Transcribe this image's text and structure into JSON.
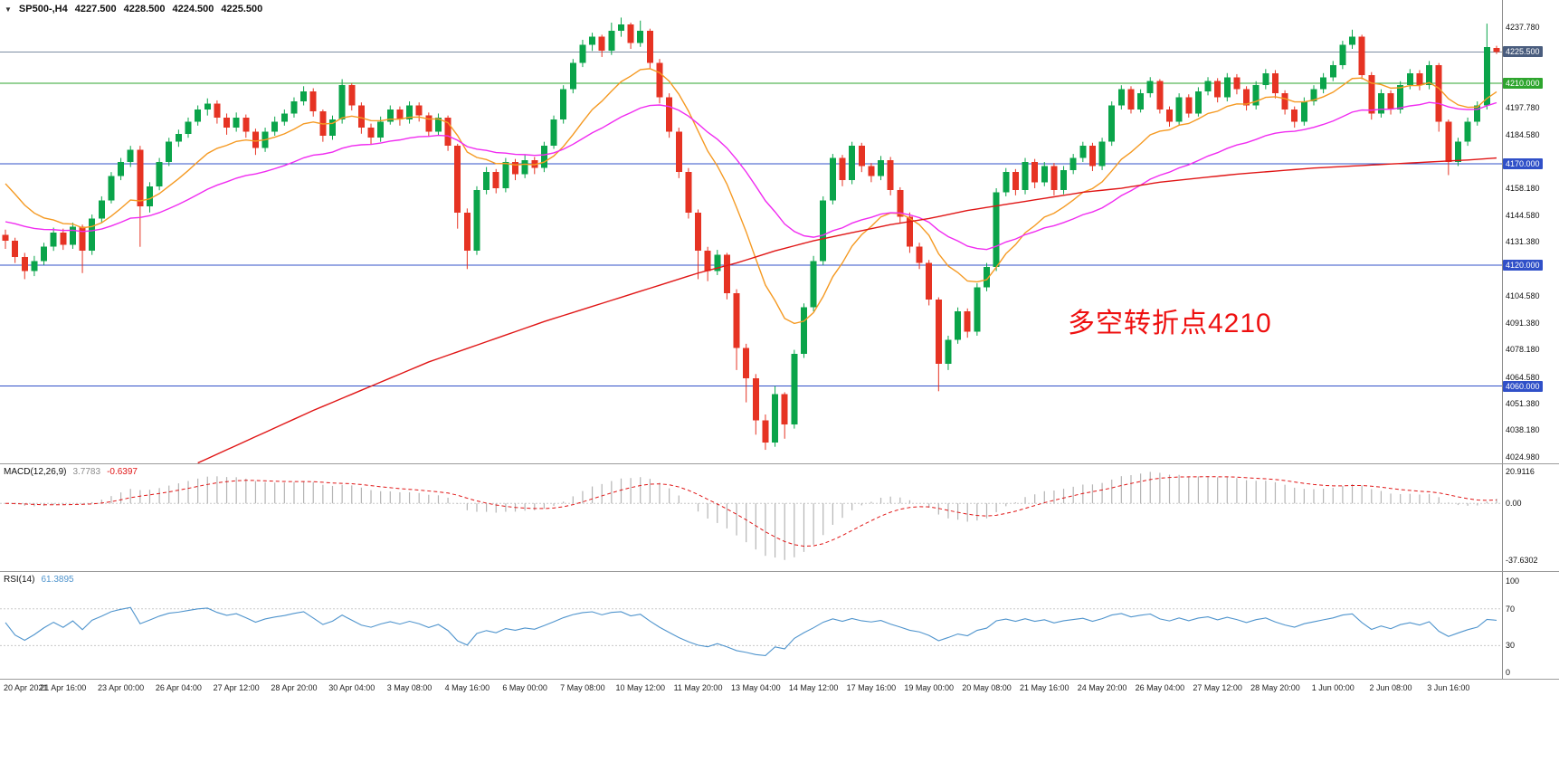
{
  "header": {
    "collapse_icon": "▼",
    "symbol_period": "SP500-,H4",
    "open": "4227.500",
    "high": "4228.500",
    "low": "4224.500",
    "close": "4225.500"
  },
  "annotation": {
    "text": "多空转折点4210",
    "color": "#ee1010"
  },
  "chart_data": {
    "type": "candlestick",
    "title": "SP500- H4",
    "bars": 156,
    "ylim": [
      4021.8,
      4251.2
    ],
    "colors": {
      "up": "#0aa44a",
      "down": "#e63323",
      "background": "#ffffff"
    },
    "x_label_step": 6,
    "x_labels": [
      "20 Apr 2021",
      "21 Apr 16:00",
      "23 Apr 00:00",
      "26 Apr 04:00",
      "27 Apr 12:00",
      "28 Apr 20:00",
      "30 Apr 04:00",
      "3 May 08:00",
      "4 May 16:00",
      "6 May 00:00",
      "7 May 08:00",
      "10 May 12:00",
      "11 May 20:00",
      "13 May 04:00",
      "14 May 12:00",
      "17 May 16:00",
      "19 May 00:00",
      "20 May 08:00",
      "21 May 16:00",
      "24 May 20:00",
      "26 May 04:00",
      "27 May 12:00",
      "28 May 20:00",
      "1 Jun 00:00",
      "2 Jun 08:00",
      "3 Jun 16:00"
    ],
    "price_scale_labels": [
      "4237.780",
      "4197.780",
      "4184.580",
      "4158.180",
      "4144.580",
      "4131.380",
      "4104.580",
      "4091.380",
      "4078.180",
      "4064.580",
      "4051.380",
      "4038.180",
      "4024.980"
    ],
    "hlines": [
      {
        "name": "current-price-line",
        "value": 4225.5,
        "label": "4225.500",
        "line_color": "#7d8fa3",
        "badge_bg": "#4a5d7e"
      },
      {
        "name": "pivot-line-4210",
        "value": 4210.0,
        "label": "4210.000",
        "line_color": "#2ea52e",
        "badge_bg": "#2ea52e"
      },
      {
        "name": "support-line-4170",
        "value": 4170.0,
        "label": "4170.000",
        "line_color": "#3050c8",
        "badge_bg": "#3050c8"
      },
      {
        "name": "support-line-4120",
        "value": 4120.0,
        "label": "4120.000",
        "line_color": "#3050c8",
        "badge_bg": "#3050c8"
      },
      {
        "name": "support-line-4060",
        "value": 4060.0,
        "label": "4060.000",
        "line_color": "#3050c8",
        "badge_bg": "#3050c8"
      }
    ],
    "moving_averages": [
      {
        "name": "ma-fast-orange",
        "type": "ema",
        "period": 13,
        "seed": 4165,
        "color": "#f59a23"
      },
      {
        "name": "ma-medium-magenta",
        "type": "ema",
        "period": 34,
        "seed": 4142,
        "color": "#f02cf0"
      },
      {
        "name": "ma-long-red",
        "type": "points",
        "color": "#e01616",
        "points": [
          [
            20,
            4022
          ],
          [
            26,
            4035
          ],
          [
            32,
            4048
          ],
          [
            38,
            4060
          ],
          [
            44,
            4072
          ],
          [
            50,
            4082
          ],
          [
            56,
            4092
          ],
          [
            60,
            4098
          ],
          [
            64,
            4104
          ],
          [
            68,
            4110
          ],
          [
            72,
            4116
          ],
          [
            76,
            4121
          ],
          [
            80,
            4127
          ],
          [
            84,
            4132
          ],
          [
            88,
            4136
          ],
          [
            92,
            4140
          ],
          [
            96,
            4143
          ],
          [
            100,
            4147
          ],
          [
            104,
            4150
          ],
          [
            108,
            4153
          ],
          [
            112,
            4156
          ],
          [
            116,
            4158
          ],
          [
            120,
            4161
          ],
          [
            124,
            4163
          ],
          [
            128,
            4165
          ],
          [
            132,
            4166.5
          ],
          [
            136,
            4168
          ],
          [
            140,
            4169
          ],
          [
            144,
            4170
          ],
          [
            148,
            4171
          ],
          [
            152,
            4172
          ],
          [
            155,
            4173
          ]
        ]
      }
    ],
    "candles": [
      [
        4135,
        4137.5,
        4128,
        4132
      ],
      [
        4132,
        4133.5,
        4121,
        4124
      ],
      [
        4124,
        4126,
        4113,
        4117
      ],
      [
        4117,
        4124.5,
        4114.5,
        4122
      ],
      [
        4122,
        4131,
        4120,
        4129
      ],
      [
        4129,
        4138.5,
        4127,
        4136
      ],
      [
        4136,
        4138,
        4127.5,
        4130
      ],
      [
        4130,
        4141,
        4128,
        4139
      ],
      [
        4139,
        4140,
        4116,
        4127
      ],
      [
        4127,
        4145,
        4125,
        4143
      ],
      [
        4143,
        4154,
        4141,
        4152
      ],
      [
        4152,
        4166,
        4150.5,
        4164
      ],
      [
        4164,
        4173,
        4162,
        4171
      ],
      [
        4171,
        4179,
        4168.5,
        4177
      ],
      [
        4177,
        4179,
        4129,
        4149
      ],
      [
        4149,
        4161,
        4146,
        4159
      ],
      [
        4159,
        4173,
        4157,
        4171
      ],
      [
        4171,
        4183,
        4169,
        4181
      ],
      [
        4181,
        4187,
        4178.5,
        4185
      ],
      [
        4185,
        4193,
        4183,
        4191
      ],
      [
        4191,
        4199,
        4189,
        4197
      ],
      [
        4197,
        4202.5,
        4194,
        4200
      ],
      [
        4200,
        4201.5,
        4190,
        4193
      ],
      [
        4193,
        4195,
        4184.5,
        4188
      ],
      [
        4188,
        4195.5,
        4186,
        4193
      ],
      [
        4193,
        4194.5,
        4183,
        4186
      ],
      [
        4186,
        4187.5,
        4174.5,
        4178
      ],
      [
        4178,
        4188,
        4176,
        4186
      ],
      [
        4186,
        4193.5,
        4184,
        4191
      ],
      [
        4191,
        4197,
        4189,
        4195
      ],
      [
        4195,
        4203,
        4193,
        4201
      ],
      [
        4201,
        4208.5,
        4199,
        4206
      ],
      [
        4206,
        4207.5,
        4193.5,
        4196
      ],
      [
        4196,
        4197,
        4181,
        4184
      ],
      [
        4184,
        4194,
        4182,
        4192
      ],
      [
        4192,
        4212,
        4190,
        4209
      ],
      [
        4209,
        4210,
        4196.5,
        4199
      ],
      [
        4199,
        4200.5,
        4185,
        4188
      ],
      [
        4188,
        4190,
        4179.5,
        4183
      ],
      [
        4183,
        4193.5,
        4181,
        4191
      ],
      [
        4191,
        4199,
        4189.5,
        4197
      ],
      [
        4197,
        4198.5,
        4189,
        4192
      ],
      [
        4192,
        4201,
        4190,
        4199
      ],
      [
        4199,
        4200.5,
        4191,
        4194
      ],
      [
        4194,
        4195.5,
        4183.5,
        4186
      ],
      [
        4186,
        4195,
        4184,
        4193
      ],
      [
        4193,
        4194,
        4176.5,
        4179
      ],
      [
        4179,
        4180,
        4138,
        4146
      ],
      [
        4146,
        4148,
        4118,
        4127
      ],
      [
        4127,
        4159,
        4125,
        4157
      ],
      [
        4157,
        4168.5,
        4155,
        4166
      ],
      [
        4166,
        4167.5,
        4155.5,
        4158
      ],
      [
        4158,
        4173,
        4156,
        4171
      ],
      [
        4171,
        4172.5,
        4162,
        4165
      ],
      [
        4165,
        4174.5,
        4163,
        4172
      ],
      [
        4172,
        4173.5,
        4165,
        4168
      ],
      [
        4168,
        4181,
        4166,
        4179
      ],
      [
        4179,
        4194,
        4177.5,
        4192
      ],
      [
        4192,
        4209,
        4190,
        4207
      ],
      [
        4207,
        4222,
        4205,
        4220
      ],
      [
        4220,
        4231.5,
        4218,
        4229
      ],
      [
        4229,
        4235,
        4226,
        4233
      ],
      [
        4233,
        4234,
        4223,
        4226
      ],
      [
        4226,
        4240,
        4224,
        4236
      ],
      [
        4236,
        4242.5,
        4233,
        4239
      ],
      [
        4239,
        4240,
        4227,
        4230
      ],
      [
        4230,
        4241,
        4228,
        4236
      ],
      [
        4236,
        4237,
        4217,
        4220
      ],
      [
        4220,
        4222,
        4200,
        4203
      ],
      [
        4203,
        4205,
        4183,
        4186
      ],
      [
        4186,
        4188,
        4163,
        4166
      ],
      [
        4166,
        4168,
        4143,
        4146
      ],
      [
        4146,
        4147.5,
        4113,
        4127
      ],
      [
        4127,
        4129,
        4112,
        4117
      ],
      [
        4117,
        4127.5,
        4115,
        4125
      ],
      [
        4125,
        4126,
        4103,
        4106
      ],
      [
        4106,
        4108,
        4068,
        4079
      ],
      [
        4079,
        4081,
        4052,
        4064
      ],
      [
        4064,
        4066,
        4036,
        4043
      ],
      [
        4043,
        4046,
        4028.5,
        4032
      ],
      [
        4032,
        4060,
        4030,
        4056
      ],
      [
        4056,
        4057,
        4034,
        4041
      ],
      [
        4041,
        4078,
        4039,
        4076
      ],
      [
        4076,
        4101,
        4074,
        4099
      ],
      [
        4099,
        4124.5,
        4097,
        4122
      ],
      [
        4122,
        4154,
        4120,
        4152
      ],
      [
        4152,
        4175,
        4150,
        4173
      ],
      [
        4173,
        4174.5,
        4159,
        4162
      ],
      [
        4162,
        4181,
        4160,
        4179
      ],
      [
        4179,
        4180.5,
        4166,
        4169
      ],
      [
        4169,
        4170.5,
        4161,
        4164
      ],
      [
        4164,
        4174,
        4162,
        4172
      ],
      [
        4172,
        4173.5,
        4154.5,
        4157
      ],
      [
        4157,
        4158.5,
        4141,
        4144
      ],
      [
        4144,
        4146,
        4126,
        4129
      ],
      [
        4129,
        4131,
        4118,
        4121
      ],
      [
        4121,
        4122.5,
        4100,
        4103
      ],
      [
        4103,
        4104,
        4057.5,
        4071
      ],
      [
        4071,
        4085,
        4068,
        4083
      ],
      [
        4083,
        4099,
        4081,
        4097
      ],
      [
        4097,
        4098.5,
        4084,
        4087
      ],
      [
        4087,
        4111,
        4085,
        4109
      ],
      [
        4109,
        4121,
        4107,
        4119
      ],
      [
        4119,
        4158,
        4117,
        4156
      ],
      [
        4156,
        4168,
        4154,
        4166
      ],
      [
        4166,
        4167.5,
        4154.5,
        4157
      ],
      [
        4157,
        4173,
        4155,
        4171
      ],
      [
        4171,
        4172.5,
        4158,
        4161
      ],
      [
        4161,
        4171,
        4159,
        4169
      ],
      [
        4169,
        4170.5,
        4154.5,
        4157
      ],
      [
        4157,
        4169,
        4155,
        4167
      ],
      [
        4167,
        4175,
        4165,
        4173
      ],
      [
        4173,
        4181,
        4171,
        4179
      ],
      [
        4179,
        4180.5,
        4166.5,
        4169
      ],
      [
        4169,
        4183,
        4167,
        4181
      ],
      [
        4181,
        4201,
        4179,
        4199
      ],
      [
        4199,
        4209,
        4197,
        4207
      ],
      [
        4207,
        4208.5,
        4195,
        4197
      ],
      [
        4197,
        4207,
        4195.5,
        4205
      ],
      [
        4205,
        4213,
        4203,
        4211
      ],
      [
        4211,
        4212,
        4195,
        4197
      ],
      [
        4197,
        4198.5,
        4188.5,
        4191
      ],
      [
        4191,
        4205,
        4189,
        4203
      ],
      [
        4203,
        4204.5,
        4193,
        4195
      ],
      [
        4195,
        4208,
        4193.5,
        4206
      ],
      [
        4206,
        4213,
        4204,
        4211
      ],
      [
        4211,
        4212.5,
        4200.5,
        4203
      ],
      [
        4203,
        4215,
        4201,
        4213
      ],
      [
        4213,
        4214.5,
        4204.5,
        4207
      ],
      [
        4207,
        4208.5,
        4196.5,
        4199
      ],
      [
        4199,
        4211,
        4197,
        4209
      ],
      [
        4209,
        4217,
        4207,
        4215
      ],
      [
        4215,
        4216.5,
        4202.5,
        4205
      ],
      [
        4205,
        4206.5,
        4194.5,
        4197
      ],
      [
        4197,
        4198.5,
        4188,
        4191
      ],
      [
        4191,
        4203,
        4189,
        4201
      ],
      [
        4201,
        4209,
        4199,
        4207
      ],
      [
        4207,
        4215,
        4205,
        4213
      ],
      [
        4213,
        4221,
        4211,
        4219
      ],
      [
        4219,
        4231,
        4217,
        4229
      ],
      [
        4229,
        4236.5,
        4227,
        4233
      ],
      [
        4233,
        4234,
        4212,
        4214
      ],
      [
        4214,
        4215.5,
        4192,
        4195
      ],
      [
        4195,
        4207,
        4193,
        4205
      ],
      [
        4205,
        4206.5,
        4194.5,
        4197
      ],
      [
        4197,
        4211,
        4195,
        4209
      ],
      [
        4209,
        4217,
        4207,
        4215
      ],
      [
        4215,
        4216.5,
        4206.5,
        4209
      ],
      [
        4209,
        4221,
        4207,
        4219
      ],
      [
        4219,
        4220,
        4186,
        4191
      ],
      [
        4191,
        4192,
        4164.5,
        4171
      ],
      [
        4171,
        4183,
        4169,
        4181
      ],
      [
        4181,
        4193,
        4179,
        4191
      ],
      [
        4191,
        4201,
        4189,
        4199
      ],
      [
        4199,
        4239.5,
        4197,
        4228
      ],
      [
        4227.5,
        4228.5,
        4224.5,
        4225.5
      ]
    ],
    "indicators": {
      "macd": {
        "label": "MACD(12,26,9)",
        "value_main": "3.7783",
        "value_signal": "-0.6397",
        "fast": 12,
        "slow": 26,
        "signal": 9,
        "ylim": [
          -45,
          26
        ],
        "histogram_color": "#b4b4b4",
        "signal_color": "#e01616",
        "scale_labels": [
          {
            "text": "20.9116",
            "value": 20.9116
          },
          {
            "text": "0.00",
            "value": 0
          },
          {
            "text": "-37.6302",
            "value": -37.6302
          }
        ],
        "max_value": 20.9116,
        "min_value": -37.6302
      },
      "rsi": {
        "label": "RSI(14)",
        "value": "61.3895",
        "period": 14,
        "color": "#4f94cd",
        "levels": [
          70,
          30
        ],
        "ylim": [
          -6,
          110
        ],
        "scale_labels": [
          {
            "text": "100",
            "value": 100
          },
          {
            "text": "70",
            "value": 70
          },
          {
            "text": "30",
            "value": 30
          },
          {
            "text": "0",
            "value": 0
          }
        ]
      }
    }
  }
}
